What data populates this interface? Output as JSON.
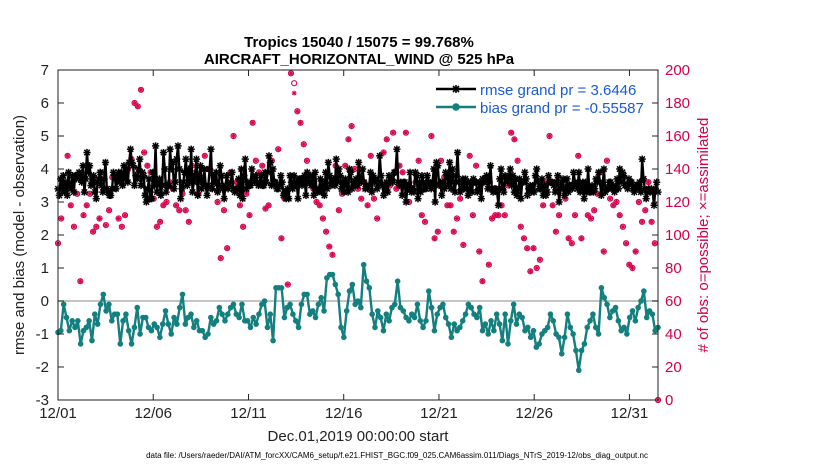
{
  "chart_data": {
    "type": "line",
    "title": "Tropics 15040 / 15075 = 99.768%",
    "subtitle": "AIRCRAFT_HORIZONTAL_WIND @ 525 hPa",
    "xlabel": "Dec.01,2019 00:00:00 start",
    "ylabel": "rmse and bias (model - observation)",
    "ylabel_right": "# of obs: o=possible; ×=assimilated",
    "footer": "data file: /Users/raeder/DAI/ATM_forcXX/CAM6_setup/f.e21.FHIST_BGC.f09_025.CAM6assim.011/Diags_NTrS_2019-12/obs_diag_output.nc",
    "xlim": [
      1,
      32.5
    ],
    "ylim": [
      -3,
      7
    ],
    "ylim_right": [
      0,
      200
    ],
    "x_ticks": [
      1,
      6,
      11,
      16,
      21,
      26,
      31
    ],
    "x_tick_labels": [
      "12/01",
      "12/06",
      "12/11",
      "12/16",
      "12/21",
      "12/26",
      "12/31"
    ],
    "y_ticks": [
      -3,
      -2,
      -1,
      0,
      1,
      2,
      3,
      4,
      5,
      6,
      7
    ],
    "y_tick_labels": [
      "-3",
      "-2",
      "-1",
      "0",
      "1",
      "2",
      "3",
      "4",
      "5",
      "6",
      "7"
    ],
    "y_ticks_right": [
      0,
      20,
      40,
      60,
      80,
      100,
      120,
      140,
      160,
      180,
      200
    ],
    "y_tick_labels_right": [
      "0",
      "20",
      "40",
      "60",
      "80",
      "100",
      "120",
      "140",
      "160",
      "180",
      "200"
    ],
    "legend_position": "top-right",
    "colors": {
      "rmse": "#000000",
      "bias": "#137f7f",
      "obs": "#d6004e",
      "zero_line": "#b0b0b0",
      "legend_text": "#1a5bd6"
    },
    "series": [
      {
        "name": "rmse grand pr = 3.6446",
        "values": [
          3.4,
          3.2,
          3.7,
          3.4,
          3.8,
          3.3,
          3.6,
          3.2,
          3.9,
          3.5,
          3.4,
          3.8,
          3.3,
          3.8,
          3.7,
          3.8,
          3.9,
          3.8,
          3.6,
          4.1,
          3.3,
          3.7,
          4.5,
          3.9,
          4.1,
          3.5,
          3.6,
          3.8,
          3.3,
          3.1,
          3.6,
          3.7,
          3.9,
          3.5,
          3.3,
          3.7,
          4.2,
          3.4,
          3.3,
          3.2,
          3.2,
          3.4,
          3.9,
          3.8,
          3.4,
          3.7,
          3.9,
          3.6,
          3.9,
          3.5,
          4.1,
          3.7,
          4.0,
          3.6,
          4.2,
          4.6,
          4.2,
          4.1,
          3.5,
          3.8,
          3.7,
          4.0,
          4.3,
          3.5,
          3.9,
          3.8,
          3.2,
          3.0,
          3.4,
          3.7,
          3.1,
          3.1,
          3.9,
          3.5,
          4.7,
          3.3,
          3.6,
          3.7,
          3.2,
          3.5,
          4.5,
          4.0,
          3.3,
          3.5,
          3.5,
          4.6,
          4.0,
          4.2,
          3.4,
          3.6,
          4.3,
          4.7,
          4.0,
          3.1,
          3.4,
          3.6,
          3.9,
          4.3,
          3.5,
          4.0,
          3.6,
          4.6,
          3.3,
          3.6,
          3.8,
          4.3,
          3.2,
          3.8,
          4.1,
          3.4,
          3.6,
          4.0,
          3.5,
          3.2,
          3.5,
          4.0,
          4.6,
          3.4,
          3.8,
          3.6,
          3.9,
          3.3,
          3.5,
          4.1,
          3.8,
          3.4,
          3.1,
          3.5,
          3.8,
          3.4,
          3.5,
          3.6,
          3.9,
          3.4,
          3.3,
          3.4,
          3.4,
          3.7,
          3.2,
          4.0,
          3.1,
          3.8,
          4.3,
          3.4,
          3.6,
          3.5,
          3.5,
          4.0,
          3.7,
          3.6,
          3.8,
          3.6,
          3.5,
          3.6,
          3.8,
          3.5,
          3.5,
          3.9,
          3.6,
          3.9,
          4.4,
          4.2,
          3.5,
          4.0,
          3.6,
          3.6,
          3.4,
          3.4,
          3.5,
          3.8,
          3.6,
          3.2,
          3.3,
          3.1,
          3.4,
          3.1,
          3.8,
          3.6,
          3.4,
          3.8,
          3.5,
          3.6,
          3.1,
          3.7,
          3.7,
          3.5,
          3.6,
          3.8,
          3.2,
          3.9,
          3.8,
          3.6,
          3.5,
          3.8,
          3.2,
          3.9,
          3.4,
          3.3,
          3.4,
          3.7,
          3.3,
          3.6,
          3.2,
          3.9,
          3.4,
          4.2,
          3.8,
          3.5,
          3.6,
          3.7,
          3.5,
          4.3,
          3.6,
          4.0,
          3.8,
          3.4,
          3.6,
          3.3,
          3.7,
          3.5,
          3.3,
          4.0,
          3.9,
          3.4,
          3.6,
          3.5,
          3.7,
          3.5,
          4.2,
          3.7,
          3.6,
          4.0,
          3.6,
          3.4,
          3.5,
          3.4,
          3.5,
          3.9,
          3.3,
          3.8,
          3.6,
          3.7,
          3.4,
          3.6,
          4.4,
          3.8,
          3.5,
          3.2,
          3.4,
          3.6,
          3.3,
          3.8,
          3.6,
          3.7,
          3.6,
          3.9,
          3.9,
          4.6,
          3.6,
          3.5,
          3.6,
          3.2,
          3.6,
          3.6,
          3.0,
          3.5,
          3.4,
          3.9,
          3.3,
          3.4,
          3.3,
          3.9,
          3.8,
          3.1,
          3.6,
          3.3,
          3.8,
          3.6,
          3.4,
          3.4,
          3.8,
          3.6,
          3.5,
          3.4,
          3.6,
          4.0,
          3.0,
          4.2,
          4.1,
          3.5,
          3.6,
          3.2,
          3.6,
          3.4,
          3.9,
          3.8,
          3.5,
          4.2,
          3.4,
          4.0,
          3.6,
          3.3,
          3.8,
          4.5,
          3.6,
          3.3,
          3.4,
          3.7,
          3.4,
          3.7,
          3.6,
          3.2,
          3.4,
          3.6,
          3.3,
          3.7,
          3.6,
          3.6,
          3.3,
          3.4,
          3.6,
          3.1,
          3.7,
          3.6,
          3.7,
          3.8,
          3.4,
          3.6,
          4.1,
          3.4,
          3.3,
          3.4,
          3.4,
          3.3,
          2.9,
          3.7,
          4.0,
          3.4,
          3.3,
          3.8,
          3.7,
          3.6,
          3.8,
          4.0,
          3.5,
          3.8,
          3.3,
          3.7,
          3.2,
          3.4,
          3.7,
          3.1,
          3.6,
          3.6,
          3.9,
          3.7,
          3.2,
          3.4,
          3.5,
          3.3,
          3.5,
          3.3,
          3.8,
          4.0,
          3.6,
          3.4,
          3.4,
          3.7,
          3.2,
          3.5,
          3.2,
          3.3,
          3.8,
          3.6,
          3.6,
          3.6,
          3.5,
          3.3,
          3.6,
          3.8,
          3.0,
          3.4,
          3.6,
          3.7,
          3.2,
          3.4,
          3.7,
          3.3,
          3.5,
          3.5,
          3.4,
          3.9,
          3.6,
          3.5,
          3.4,
          3.9,
          3.3,
          3.4,
          3.6,
          3.1,
          3.6,
          3.3,
          4.0,
          3.3,
          3.3,
          3.5,
          3.3,
          3.4,
          3.7,
          3.6,
          3.9,
          3.6,
          3.2,
          3.5,
          4.0,
          3.3,
          3.4,
          3.4,
          3.6,
          3.6,
          3.4,
          3.5,
          3.3,
          3.4,
          3.7,
          3.4,
          4.0,
          3.6,
          3.9,
          3.8,
          3.5,
          3.5,
          3.4,
          3.7,
          3.6,
          3.6,
          3.4,
          3.3,
          3.5,
          3.4,
          3.5,
          3.6,
          3.3,
          4.3,
          3.7,
          3.4,
          3.1,
          3.3,
          3.4,
          3.3,
          3.4,
          3.3,
          2.9,
          3.4,
          3.6,
          3.3
        ]
      },
      {
        "name": "bias grand pr = -0.55587",
        "values": [
          -0.95,
          -0.9,
          -0.1,
          -0.5,
          -0.9,
          -0.6,
          -0.8,
          -0.6,
          -1.3,
          -0.9,
          -0.8,
          -0.6,
          -1.2,
          -0.4,
          -0.7,
          -0.1,
          0.2,
          -0.3,
          -0.1,
          -0.6,
          -0.4,
          -0.4,
          -1.3,
          -0.6,
          -0.4,
          -0.9,
          -1.3,
          -0.8,
          -0.2,
          -1.0,
          -0.5,
          -0.5,
          -0.8,
          -0.9,
          -0.7,
          -0.8,
          -1.1,
          -0.7,
          -0.3,
          -0.7,
          -1.0,
          -0.5,
          -0.7,
          -0.2,
          0.2,
          -0.7,
          -0.5,
          -0.4,
          -0.8,
          -0.6,
          -0.9,
          -0.9,
          -1.1,
          -1.0,
          -0.5,
          -0.7,
          -0.6,
          -0.2,
          -0.4,
          -0.6,
          -0.4,
          -0.2,
          -0.1,
          -0.4,
          -0.5,
          -0.1,
          -0.6,
          -0.6,
          -0.8,
          -0.5,
          -0.7,
          -0.4,
          -0.1,
          0.0,
          -0.8,
          -0.4,
          -1.2,
          0.4,
          0.4,
          0.4,
          -0.5,
          -0.2,
          -0.1,
          -0.4,
          -0.6,
          -0.8,
          -0.1,
          0.2,
          0.2,
          -0.4,
          -0.3,
          -0.5,
          -0.1,
          0.1,
          -0.3,
          0.7,
          0.8,
          0.8,
          0.5,
          0.2,
          -0.8,
          -1.1,
          -0.3,
          0.3,
          0.5,
          -0.1,
          0.0,
          -0.2,
          1.1,
          0.6,
          0.4,
          -0.4,
          -0.8,
          -0.3,
          -0.5,
          -0.9,
          -0.4,
          -0.6,
          -0.2,
          -0.1,
          0.6,
          -0.2,
          -0.3,
          -0.5,
          -0.6,
          -0.4,
          -0.5,
          -0.1,
          -0.6,
          -0.8,
          -0.6,
          0.3,
          -0.2,
          -0.9,
          -0.4,
          -0.2,
          -0.1,
          -0.5,
          -0.7,
          -1.1,
          -0.7,
          -0.9,
          -0.8,
          -0.6,
          -0.4,
          -0.1,
          -0.2,
          -0.4,
          -0.5,
          -0.2,
          -0.9,
          -0.7,
          -1.0,
          -0.6,
          -0.9,
          -0.4,
          -0.7,
          -1.2,
          -0.4,
          -1.3,
          -0.6,
          -0.1,
          -0.7,
          -0.4,
          -0.5,
          -0.9,
          -0.8,
          -1.1,
          -0.9,
          -1.4,
          -1.3,
          -1.0,
          -0.9,
          -0.8,
          -0.4,
          -0.6,
          -1.0,
          -1.1,
          -1.6,
          -1.1,
          -0.4,
          -0.8,
          -1.0,
          -1.5,
          -2.1,
          -1.5,
          -1.3,
          -0.8,
          -0.6,
          -0.4,
          -0.8,
          -1.0,
          0.4,
          0.1,
          -0.1,
          -0.5,
          -0.3,
          -0.2,
          -0.6,
          -0.9,
          -0.8,
          -1.0,
          -0.5,
          -0.3,
          -0.6,
          -0.2,
          0.0,
          0.3,
          -0.5,
          -0.3,
          -0.4,
          -0.9,
          -0.8
        ]
      }
    ],
    "obs_possible": [
      95,
      110,
      128,
      148,
      118,
      105,
      125,
      72,
      112,
      118,
      125,
      102,
      105,
      110,
      138,
      106,
      115,
      135,
      128,
      110,
      105,
      112,
      140,
      146,
      180,
      178,
      188,
      150,
      142,
      138,
      122,
      105,
      108,
      118,
      120,
      132,
      128,
      118,
      115,
      125,
      115,
      108,
      142,
      138,
      125,
      132,
      148,
      140,
      128,
      132,
      120,
      86,
      115,
      92,
      138,
      160,
      132,
      118,
      105,
      125,
      112,
      168,
      145,
      138,
      142,
      116,
      118,
      145,
      132,
      152,
      98,
      122,
      70,
      198,
      192,
      175,
      168,
      155,
      145,
      132,
      128,
      120,
      118,
      110,
      102,
      93,
      88,
      142,
      115,
      125,
      142,
      158,
      166,
      140,
      128,
      122,
      132,
      118,
      148,
      122,
      110,
      132,
      150,
      158,
      130,
      162,
      128,
      142,
      138,
      162,
      120,
      128,
      132,
      145,
      112,
      108,
      132,
      160,
      98,
      102,
      145,
      135,
      118,
      118,
      102,
      110,
      122,
      94,
      128,
      148,
      112,
      142,
      90,
      72,
      132,
      82,
      110,
      112,
      112,
      118,
      112,
      130,
      162,
      158,
      145,
      105,
      98,
      92,
      78,
      92,
      80,
      85,
      118,
      132,
      160,
      118,
      102,
      112,
      128,
      122,
      98,
      95,
      112,
      148,
      98,
      128,
      112,
      110,
      115,
      125,
      138,
      90,
      145,
      122,
      118,
      120,
      112,
      105,
      95,
      82,
      80,
      90,
      120,
      108,
      115,
      132,
      108,
      95,
      0
    ],
    "obs_assimilated": [
      95,
      110,
      128,
      148,
      118,
      105,
      125,
      72,
      112,
      118,
      125,
      102,
      105,
      110,
      138,
      106,
      115,
      135,
      128,
      110,
      105,
      112,
      140,
      146,
      180,
      178,
      188,
      150,
      142,
      138,
      122,
      105,
      108,
      118,
      120,
      132,
      128,
      118,
      115,
      125,
      115,
      108,
      142,
      138,
      125,
      132,
      148,
      140,
      128,
      132,
      120,
      86,
      115,
      92,
      138,
      160,
      132,
      118,
      105,
      125,
      112,
      168,
      145,
      138,
      142,
      116,
      118,
      145,
      132,
      152,
      98,
      122,
      70,
      198,
      186,
      175,
      168,
      155,
      145,
      132,
      128,
      120,
      118,
      110,
      102,
      93,
      88,
      142,
      115,
      125,
      142,
      158,
      166,
      140,
      128,
      122,
      132,
      118,
      148,
      122,
      110,
      132,
      150,
      158,
      130,
      162,
      128,
      142,
      138,
      162,
      120,
      128,
      132,
      145,
      112,
      108,
      132,
      160,
      98,
      102,
      145,
      135,
      118,
      118,
      102,
      110,
      122,
      94,
      128,
      148,
      112,
      142,
      90,
      72,
      132,
      82,
      110,
      112,
      112,
      118,
      112,
      130,
      162,
      158,
      145,
      105,
      98,
      92,
      78,
      92,
      80,
      85,
      118,
      132,
      160,
      118,
      102,
      112,
      128,
      122,
      98,
      95,
      112,
      148,
      98,
      128,
      112,
      110,
      115,
      125,
      138,
      90,
      145,
      122,
      118,
      120,
      112,
      105,
      95,
      82,
      80,
      90,
      120,
      108,
      115,
      132,
      108,
      95,
      0
    ]
  }
}
